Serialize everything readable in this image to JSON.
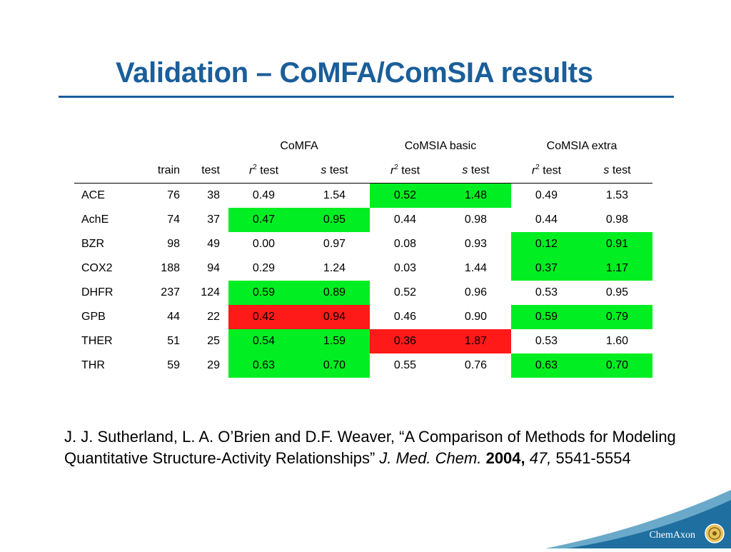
{
  "slide": {
    "title": "Validation – CoMFA/ComSIA results",
    "colors": {
      "title": "#1a5e9a",
      "good": "#00ee22",
      "bad": "#ff1a1a"
    }
  },
  "table": {
    "groups": [
      "CoMFA",
      "CoMSIA basic",
      "CoMSIA extra"
    ],
    "sub_headers": {
      "train": "train",
      "test": "test",
      "r2_var": "r",
      "r2_sup": "2",
      "s_var": "s",
      "test_suffix": " test"
    },
    "rows": [
      {
        "name": "ACE",
        "train": "76",
        "test": "38",
        "comfa_r2": "0.49",
        "comfa_s": "1.54",
        "basic_r2": "0.52",
        "basic_s": "1.48",
        "extra_r2": "0.49",
        "extra_s": "1.53",
        "highlight": [
          "",
          "good",
          ""
        ]
      },
      {
        "name": "AchE",
        "train": "74",
        "test": "37",
        "comfa_r2": "0.47",
        "comfa_s": "0.95",
        "basic_r2": "0.44",
        "basic_s": "0.98",
        "extra_r2": "0.44",
        "extra_s": "0.98",
        "highlight": [
          "good",
          "",
          ""
        ]
      },
      {
        "name": "BZR",
        "train": "98",
        "test": "49",
        "comfa_r2": "0.00",
        "comfa_s": "0.97",
        "basic_r2": "0.08",
        "basic_s": "0.93",
        "extra_r2": "0.12",
        "extra_s": "0.91",
        "highlight": [
          "",
          "",
          "good"
        ]
      },
      {
        "name": "COX2",
        "train": "188",
        "test": "94",
        "comfa_r2": "0.29",
        "comfa_s": "1.24",
        "basic_r2": "0.03",
        "basic_s": "1.44",
        "extra_r2": "0.37",
        "extra_s": "1.17",
        "highlight": [
          "",
          "",
          "good"
        ]
      },
      {
        "name": "DHFR",
        "train": "237",
        "test": "124",
        "comfa_r2": "0.59",
        "comfa_s": "0.89",
        "basic_r2": "0.52",
        "basic_s": "0.96",
        "extra_r2": "0.53",
        "extra_s": "0.95",
        "highlight": [
          "good",
          "",
          ""
        ]
      },
      {
        "name": "GPB",
        "train": "44",
        "test": "22",
        "comfa_r2": "0.42",
        "comfa_s": "0.94",
        "basic_r2": "0.46",
        "basic_s": "0.90",
        "extra_r2": "0.59",
        "extra_s": "0.79",
        "highlight": [
          "bad",
          "",
          "good"
        ]
      },
      {
        "name": "THER",
        "train": "51",
        "test": "25",
        "comfa_r2": "0.54",
        "comfa_s": "1.59",
        "basic_r2": "0.36",
        "basic_s": "1.87",
        "extra_r2": "0.53",
        "extra_s": "1.60",
        "highlight": [
          "good",
          "bad",
          ""
        ]
      },
      {
        "name": "THR",
        "train": "59",
        "test": "29",
        "comfa_r2": "0.63",
        "comfa_s": "0.70",
        "basic_r2": "0.55",
        "basic_s": "0.76",
        "extra_r2": "0.63",
        "extra_s": "0.70",
        "highlight": [
          "good",
          "",
          "good"
        ]
      }
    ]
  },
  "citation": {
    "authors_title": "J. J. Sutherland, L. A. O’Brien and D.F. Weaver, “A Comparison of Methods for Modeling Quantitative Structure-Activity Relationships” ",
    "journal": "J. Med. Chem.",
    "year": "2004,",
    "volume": "47,",
    "pages": "5541-5554"
  },
  "logo": {
    "text": "ChemAxon",
    "icon": "chemaxon-seal-icon"
  }
}
